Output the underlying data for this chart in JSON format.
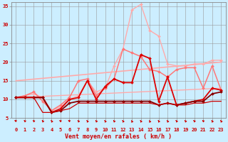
{
  "xlabel": "Vent moyen/en rafales ( km/h )",
  "background_color": "#cceeff",
  "grid_color": "#999999",
  "xlim": [
    -0.5,
    23.5
  ],
  "ylim": [
    5,
    36
  ],
  "yticks": [
    5,
    10,
    15,
    20,
    25,
    30,
    35
  ],
  "xticks": [
    0,
    1,
    2,
    3,
    4,
    5,
    6,
    7,
    8,
    9,
    10,
    11,
    12,
    13,
    14,
    15,
    16,
    17,
    18,
    19,
    20,
    21,
    22,
    23
  ],
  "lines": [
    {
      "x": [
        0,
        23
      ],
      "y": [
        15.0,
        20.0
      ],
      "color": "#ffaaaa",
      "lw": 1.2,
      "marker": null
    },
    {
      "x": [
        0,
        23
      ],
      "y": [
        10.5,
        13.0
      ],
      "color": "#ffaaaa",
      "lw": 1.0,
      "marker": null
    },
    {
      "x": [
        0,
        1,
        2,
        3,
        4,
        5,
        6,
        7,
        8,
        9,
        10,
        11,
        12,
        13,
        14,
        15,
        16,
        17,
        18,
        19,
        20,
        21,
        22,
        23
      ],
      "y": [
        10.5,
        11.0,
        11.5,
        10.5,
        7.0,
        8.0,
        10.0,
        11.0,
        15.0,
        12.0,
        13.0,
        19.0,
        23.5,
        34.0,
        35.5,
        28.5,
        27.0,
        19.5,
        19.0,
        19.0,
        19.5,
        19.5,
        20.5,
        20.5
      ],
      "color": "#ffaaaa",
      "lw": 1.0,
      "marker": "D",
      "ms": 2.0
    },
    {
      "x": [
        0,
        1,
        2,
        3,
        4,
        5,
        6,
        7,
        8,
        9,
        10,
        11,
        12,
        13,
        14,
        15,
        16,
        17,
        18,
        19,
        20,
        21,
        22,
        23
      ],
      "y": [
        10.5,
        11.0,
        12.0,
        9.5,
        7.0,
        8.5,
        10.5,
        15.0,
        15.5,
        11.0,
        13.0,
        15.5,
        23.5,
        22.5,
        21.5,
        18.0,
        17.5,
        16.0,
        18.0,
        18.5,
        18.5,
        13.0,
        19.0,
        12.5
      ],
      "color": "#ff7777",
      "lw": 1.1,
      "marker": "D",
      "ms": 2.0
    },
    {
      "x": [
        0,
        1,
        2,
        3,
        4,
        5,
        6,
        7,
        8,
        9,
        10,
        11,
        12,
        13,
        14,
        15,
        16,
        17,
        18,
        19,
        20,
        21,
        22,
        23
      ],
      "y": [
        10.5,
        10.5,
        10.5,
        10.5,
        6.5,
        7.5,
        10.0,
        10.5,
        15.0,
        10.0,
        13.5,
        15.5,
        14.5,
        14.5,
        22.0,
        21.0,
        9.5,
        16.0,
        8.5,
        9.0,
        9.5,
        10.0,
        13.0,
        12.5
      ],
      "color": "#dd0000",
      "lw": 1.3,
      "marker": "D",
      "ms": 2.0
    },
    {
      "x": [
        0,
        1,
        2,
        3,
        4,
        5,
        6,
        7,
        8,
        9,
        10,
        11,
        12,
        13,
        14,
        15,
        16,
        17,
        18,
        19,
        20,
        21,
        22,
        23
      ],
      "y": [
        10.5,
        10.5,
        10.5,
        10.5,
        6.5,
        7.0,
        9.0,
        9.5,
        9.5,
        9.5,
        9.5,
        9.5,
        9.5,
        9.5,
        9.5,
        9.5,
        8.5,
        9.0,
        8.5,
        9.0,
        9.5,
        9.5,
        11.5,
        12.0
      ],
      "color": "#880000",
      "lw": 1.3,
      "marker": "D",
      "ms": 2.0
    },
    {
      "x": [
        0,
        1,
        2,
        3,
        4,
        5,
        6,
        7,
        8,
        9,
        10,
        11,
        12,
        13,
        14,
        15,
        16,
        17,
        18,
        19,
        20,
        21,
        22,
        23
      ],
      "y": [
        10.5,
        10.5,
        10.5,
        6.5,
        6.5,
        7.0,
        7.5,
        9.0,
        9.0,
        9.0,
        9.0,
        9.0,
        9.0,
        9.0,
        9.0,
        9.0,
        8.5,
        9.0,
        8.5,
        8.5,
        9.0,
        9.0,
        9.5,
        9.5
      ],
      "color": "#cc0000",
      "lw": 0.9,
      "marker": null
    }
  ],
  "arrow_color": "#cc0000",
  "tick_label_color": "#cc0000",
  "xlabel_color": "#cc0000",
  "tick_fontsize": 5.0,
  "xlabel_fontsize": 6.0
}
